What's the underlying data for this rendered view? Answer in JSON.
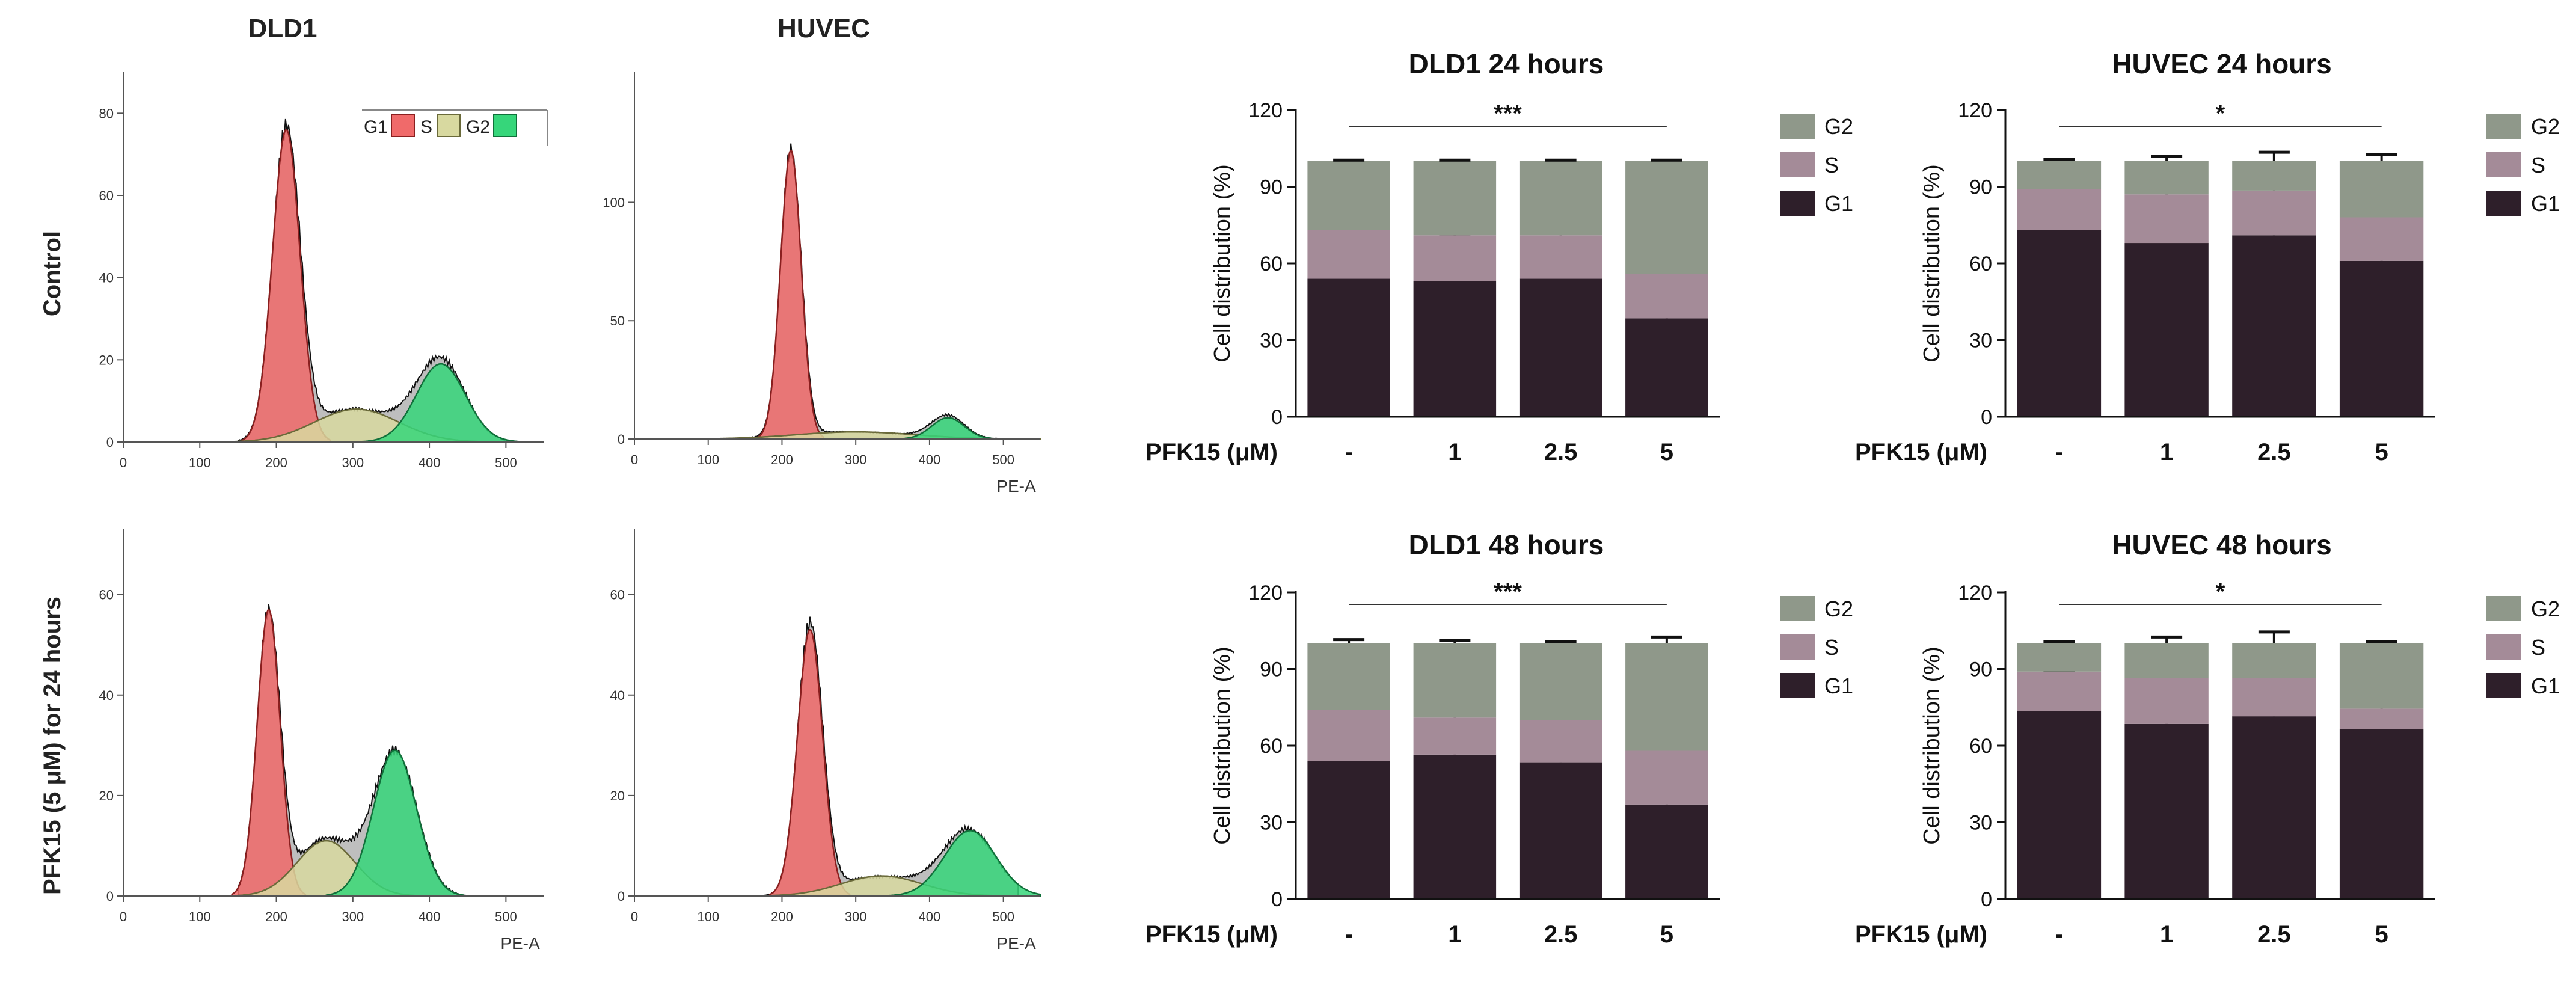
{
  "figure": {
    "column_titles": [
      "DLD1",
      "HUVEC"
    ],
    "row_labels": [
      "Control",
      "PFK15 (5 μM) for 24 hours"
    ],
    "flow_legend": [
      "G1",
      "S",
      "G2"
    ],
    "bar_legend": [
      "G2",
      "S",
      "G1"
    ],
    "bar_xaxis_title": "PFK15 (μM)",
    "bar_ylabel": "Cell distribution (%)"
  },
  "colors": {
    "flow_g1": "#f06a6a",
    "flow_s": "#d8d9a0",
    "flow_g2": "#36d67a",
    "flow_histogram": "#a8a8a8",
    "bar_g1": "#2e1f2a",
    "bar_s": "#a48b98",
    "bar_g2": "#8f988a"
  },
  "chart_data": [
    {
      "type": "area",
      "title": "DLD1",
      "row": "Control",
      "xlabel": "",
      "xlim": [
        0,
        550
      ],
      "xticks": [
        0,
        100,
        200,
        300,
        400,
        500
      ],
      "ylim": [
        0,
        90
      ],
      "yticks": [
        0,
        20,
        40,
        60,
        80
      ],
      "series": [
        {
          "name": "G1",
          "peak_x": 213,
          "width": 18,
          "height": 76
        },
        {
          "name": "S",
          "peak_x": 305,
          "width": 55,
          "height": 8
        },
        {
          "name": "G2",
          "peak_x": 415,
          "width": 32,
          "height": 19
        }
      ]
    },
    {
      "type": "area",
      "title": "HUVEC",
      "row": "Control",
      "xlabel": "PE-A",
      "xlim": [
        0,
        550
      ],
      "xticks": [
        0,
        100,
        200,
        300,
        400,
        500
      ],
      "ylim": [
        0,
        155
      ],
      "yticks": [
        0,
        50,
        100
      ],
      "series": [
        {
          "name": "G1",
          "peak_x": 212,
          "width": 14,
          "height": 122
        },
        {
          "name": "S",
          "peak_x": 300,
          "width": 80,
          "height": 3
        },
        {
          "name": "G2",
          "peak_x": 425,
          "width": 22,
          "height": 9
        }
      ]
    },
    {
      "type": "area",
      "title": "DLD1",
      "row": "PFK15 (5 μM) for 24 hours",
      "xlabel": "PE-A",
      "xlim": [
        0,
        550
      ],
      "xticks": [
        0,
        100,
        200,
        300,
        400,
        500
      ],
      "ylim": [
        0,
        73
      ],
      "yticks": [
        0,
        20,
        40,
        60
      ],
      "series": [
        {
          "name": "G1",
          "peak_x": 190,
          "width": 15,
          "height": 57
        },
        {
          "name": "S",
          "peak_x": 265,
          "width": 38,
          "height": 11
        },
        {
          "name": "G2",
          "peak_x": 355,
          "width": 28,
          "height": 29
        }
      ]
    },
    {
      "type": "area",
      "title": "HUVEC",
      "row": "PFK15 (5 μM) for 24 hours",
      "xlabel": "PE-A",
      "xlim": [
        0,
        550
      ],
      "xticks": [
        0,
        100,
        200,
        300,
        400,
        500
      ],
      "ylim": [
        0,
        73
      ],
      "yticks": [
        0,
        20,
        40,
        60
      ],
      "series": [
        {
          "name": "G1",
          "peak_x": 238,
          "width": 17,
          "height": 53
        },
        {
          "name": "S",
          "peak_x": 335,
          "width": 55,
          "height": 4
        },
        {
          "name": "G2",
          "peak_x": 455,
          "width": 35,
          "height": 13
        }
      ]
    },
    {
      "type": "bar",
      "title": "DLD1 24 hours",
      "xlabel": "PFK15 (μM)",
      "ylabel": "Cell distribution (%)",
      "categories": [
        "-",
        "1",
        "2.5",
        "5"
      ],
      "ylim": [
        0,
        120
      ],
      "yticks": [
        0,
        30,
        60,
        90,
        120
      ],
      "significance": "***",
      "series": [
        {
          "name": "G1",
          "values": [
            54,
            53,
            54,
            38.5
          ],
          "errors": [
            1,
            0.7,
            0.7,
            0.7
          ]
        },
        {
          "name": "S",
          "values": [
            19,
            18,
            17,
            17.5
          ],
          "errors": [
            1.2,
            0.6,
            0.8,
            0.8
          ]
        },
        {
          "name": "G2",
          "values": [
            27,
            29,
            29,
            44
          ],
          "errors": [
            0.4,
            0.4,
            0.4,
            0.4
          ]
        }
      ]
    },
    {
      "type": "bar",
      "title": "HUVEC 24 hours",
      "xlabel": "PFK15 (μM)",
      "ylabel": "Cell distribution (%)",
      "categories": [
        "-",
        "1",
        "2.5",
        "5"
      ],
      "ylim": [
        0,
        120
      ],
      "yticks": [
        0,
        30,
        60,
        90,
        120
      ],
      "significance": "*",
      "series": [
        {
          "name": "G1",
          "values": [
            73,
            68,
            71,
            61
          ],
          "errors": [
            1,
            3.5,
            3,
            1.5
          ]
        },
        {
          "name": "S",
          "values": [
            16,
            19,
            17.5,
            17
          ],
          "errors": [
            1,
            1.5,
            1.5,
            1.5
          ]
        },
        {
          "name": "G2",
          "values": [
            11,
            13,
            11.5,
            22
          ],
          "errors": [
            0.7,
            2,
            3.5,
            2.5
          ]
        }
      ]
    },
    {
      "type": "bar",
      "title": "DLD1 48 hours",
      "xlabel": "PFK15 (μM)",
      "ylabel": "Cell distribution (%)",
      "categories": [
        "-",
        "1",
        "2.5",
        "5"
      ],
      "ylim": [
        0,
        120
      ],
      "yticks": [
        0,
        30,
        60,
        90,
        120
      ],
      "significance": "***",
      "series": [
        {
          "name": "G1",
          "values": [
            54,
            56.5,
            53.5,
            37
          ],
          "errors": [
            1,
            0.8,
            0.8,
            1.2
          ]
        },
        {
          "name": "S",
          "values": [
            20,
            14.5,
            16.5,
            21
          ],
          "errors": [
            1,
            1.3,
            0.6,
            3.5
          ]
        },
        {
          "name": "G2",
          "values": [
            26,
            29,
            30,
            42
          ],
          "errors": [
            1.5,
            1.2,
            0.6,
            2.5
          ]
        }
      ]
    },
    {
      "type": "bar",
      "title": "HUVEC 48 hours",
      "xlabel": "PFK15 (μM)",
      "ylabel": "Cell distribution (%)",
      "categories": [
        "-",
        "1",
        "2.5",
        "5"
      ],
      "ylim": [
        0,
        120
      ],
      "yticks": [
        0,
        30,
        60,
        90,
        120
      ],
      "significance": "*",
      "series": [
        {
          "name": "G1",
          "values": [
            73.5,
            68.5,
            71.5,
            66.5
          ],
          "errors": [
            0.8,
            3,
            3,
            1.5
          ]
        },
        {
          "name": "S",
          "values": [
            15.5,
            18,
            15,
            8
          ],
          "errors": [
            0.5,
            1.5,
            1,
            2
          ]
        },
        {
          "name": "G2",
          "values": [
            11,
            13.5,
            13.5,
            25.5
          ],
          "errors": [
            0.7,
            2.5,
            4.5,
            0.7
          ]
        }
      ]
    }
  ]
}
